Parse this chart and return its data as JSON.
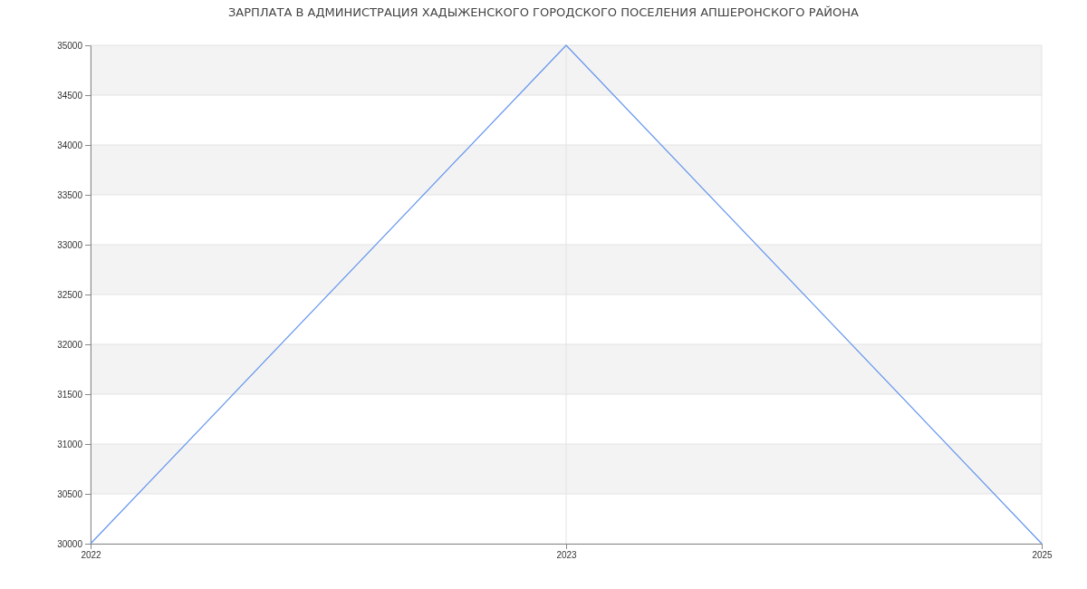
{
  "chart_data": {
    "type": "line",
    "title": "ЗАРПЛАТА В АДМИНИСТРАЦИЯ ХАДЫЖЕНСКОГО ГОРОДСКОГО ПОСЕЛЕНИЯ АПШЕРОНСКОГО РАЙОНА",
    "categories": [
      "2022",
      "2023",
      "2025"
    ],
    "series": [
      {
        "color": "#6495ed",
        "values": [
          30000,
          35000,
          30000
        ]
      }
    ],
    "ylim": [
      30000,
      35000
    ],
    "yticks": [
      30000,
      30500,
      31000,
      31500,
      32000,
      32500,
      33000,
      33500,
      34000,
      34500,
      35000
    ],
    "grid": true,
    "marker": "none",
    "line_style": "solid"
  }
}
